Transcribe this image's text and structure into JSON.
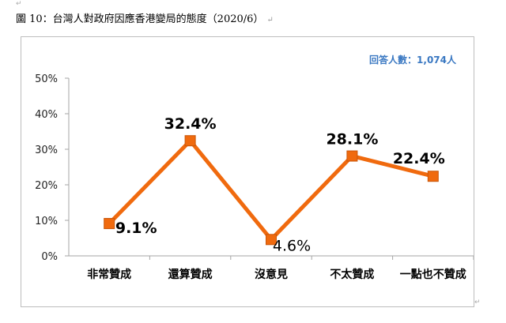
{
  "caption": {
    "text": "圖 10：台灣人對政府因應香港變局的態度（2020/6）",
    "trailing_mark": "↵"
  },
  "respondents_note": "回答人數：1,074人",
  "styles": {
    "line_color": "#f06a0e",
    "label_color": "#000000",
    "note_color": "#3a78c2",
    "axis_color": "#a6a6a6"
  },
  "chart_data": {
    "type": "line",
    "categories": [
      "非常贊成",
      "還算贊成",
      "沒意見",
      "不太贊成",
      "一點也不贊成"
    ],
    "values": [
      9.1,
      32.4,
      4.6,
      28.1,
      22.4
    ],
    "data_labels": [
      "9.1%",
      "32.4%",
      "4.6%",
      "28.1%",
      "22.4%"
    ],
    "y_ticks": [
      "0%",
      "10%",
      "20%",
      "30%",
      "40%",
      "50%"
    ],
    "ylim": [
      0,
      50
    ],
    "title": "",
    "xlabel": "",
    "ylabel": "",
    "grid": false,
    "legend": "none"
  }
}
